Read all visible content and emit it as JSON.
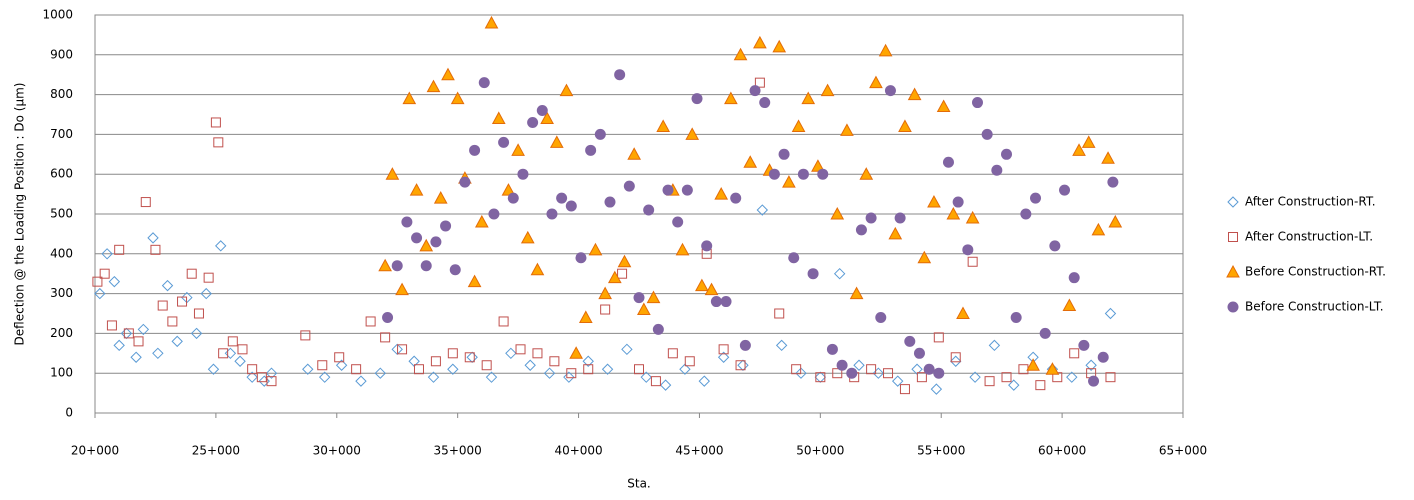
{
  "chart_data": {
    "type": "scatter",
    "y_label": "Deflection @ the Loading Position : Do (μm)",
    "x_label": "Sta.",
    "xlim": [
      20000,
      65000
    ],
    "xticks": [
      {
        "value": 20000,
        "label": "20+000"
      },
      {
        "value": 25000,
        "label": "25+000"
      },
      {
        "value": 30000,
        "label": "30+000"
      },
      {
        "value": 35000,
        "label": "35+000"
      },
      {
        "value": 40000,
        "label": "40+000"
      },
      {
        "value": 45000,
        "label": "45+000"
      },
      {
        "value": 50000,
        "label": "50+000"
      },
      {
        "value": 55000,
        "label": "55+000"
      },
      {
        "value": 60000,
        "label": "60+000"
      },
      {
        "value": 65000,
        "label": "65+000"
      }
    ],
    "ylim": [
      0,
      1000
    ],
    "yticks": [
      0,
      100,
      200,
      300,
      400,
      500,
      600,
      700,
      800,
      900,
      1000
    ],
    "grid": true,
    "legend": "right",
    "series": [
      {
        "name": "After Construction-RT.",
        "color": "#5b9bd5",
        "marker": "diamond",
        "x": [
          20200,
          20500,
          20800,
          21000,
          21300,
          21700,
          22000,
          22400,
          22600,
          23000,
          23400,
          23800,
          24200,
          24600,
          24900,
          25200,
          25600,
          26000,
          26500,
          27000,
          27300,
          28800,
          29500,
          30200,
          31000,
          31800,
          32500,
          33200,
          34000,
          34800,
          35600,
          36400,
          37200,
          38000,
          38800,
          39600,
          40400,
          41200,
          42000,
          42800,
          43600,
          44400,
          45200,
          46000,
          46800,
          47600,
          48400,
          49200,
          50000,
          50800,
          51600,
          52400,
          53200,
          54000,
          54800,
          55600,
          56400,
          57200,
          58000,
          58800,
          59600,
          60400,
          61200,
          62000
        ],
        "values": [
          300,
          400,
          330,
          170,
          200,
          140,
          210,
          440,
          150,
          320,
          180,
          290,
          200,
          300,
          110,
          420,
          150,
          130,
          90,
          80,
          100,
          110,
          90,
          120,
          80,
          100,
          160,
          130,
          90,
          110,
          140,
          90,
          150,
          120,
          100,
          90,
          130,
          110,
          160,
          90,
          70,
          110,
          80,
          140,
          120,
          510,
          170,
          100,
          90,
          350,
          120,
          100,
          80,
          110,
          60,
          130,
          90,
          170,
          70,
          140,
          110,
          90,
          120,
          250
        ]
      },
      {
        "name": "After Construction-LT.",
        "color": "#c0504d",
        "marker": "square",
        "x": [
          20100,
          20400,
          20700,
          21000,
          21400,
          21800,
          22100,
          22500,
          22800,
          23200,
          23600,
          24000,
          24300,
          24700,
          25000,
          25100,
          25300,
          25700,
          26100,
          26500,
          26900,
          27300,
          28700,
          29400,
          30100,
          30800,
          31400,
          32000,
          32700,
          33400,
          34100,
          34800,
          35500,
          36200,
          36900,
          37600,
          38300,
          39000,
          39700,
          40400,
          41100,
          41800,
          42500,
          43200,
          43900,
          44600,
          45300,
          46000,
          46700,
          47500,
          48300,
          49000,
          50000,
          50700,
          51400,
          52100,
          52800,
          53500,
          54200,
          54900,
          55600,
          56300,
          57000,
          57700,
          58400,
          59100,
          59800,
          60500,
          61200,
          62000
        ],
        "values": [
          330,
          350,
          220,
          410,
          200,
          180,
          530,
          410,
          270,
          230,
          280,
          350,
          250,
          340,
          730,
          680,
          150,
          180,
          160,
          110,
          90,
          80,
          195,
          120,
          140,
          110,
          230,
          190,
          160,
          110,
          130,
          150,
          140,
          120,
          230,
          160,
          150,
          130,
          100,
          110,
          260,
          350,
          110,
          80,
          150,
          130,
          400,
          160,
          120,
          830,
          250,
          110,
          90,
          100,
          90,
          110,
          100,
          60,
          90,
          190,
          140,
          380,
          80,
          90,
          110,
          70,
          90,
          150,
          100,
          90
        ]
      },
      {
        "name": "Before Construction-RT.",
        "color": "#ffa500",
        "marker": "triangle",
        "x": [
          32000,
          32300,
          32700,
          33000,
          33300,
          33700,
          34000,
          34300,
          34600,
          35000,
          35300,
          35700,
          36000,
          36400,
          36700,
          37100,
          37500,
          37900,
          38300,
          38700,
          39100,
          39500,
          39900,
          40300,
          40700,
          41100,
          41500,
          41900,
          42300,
          42700,
          43100,
          43500,
          43900,
          44300,
          44700,
          45100,
          45500,
          45900,
          46300,
          46700,
          47100,
          47500,
          47900,
          48300,
          48700,
          49100,
          49500,
          49900,
          50300,
          50700,
          51100,
          51500,
          51900,
          52300,
          52700,
          53100,
          53500,
          53900,
          54300,
          54700,
          55100,
          55500,
          55900,
          56300,
          58800,
          59600,
          60300,
          60700,
          61100,
          61500,
          61900,
          62200
        ],
        "values": [
          370,
          600,
          310,
          790,
          560,
          420,
          820,
          540,
          850,
          790,
          590,
          330,
          480,
          980,
          740,
          560,
          660,
          440,
          360,
          740,
          680,
          810,
          150,
          240,
          410,
          300,
          340,
          380,
          650,
          260,
          290,
          720,
          560,
          410,
          700,
          320,
          310,
          550,
          790,
          900,
          630,
          930,
          610,
          920,
          580,
          720,
          790,
          620,
          810,
          500,
          710,
          300,
          600,
          830,
          910,
          450,
          720,
          800,
          390,
          530,
          770,
          500,
          250,
          490,
          120,
          110,
          270,
          660,
          680,
          460,
          640,
          480
        ]
      },
      {
        "name": "Before Construction-LT.",
        "color": "#8064a2",
        "marker": "circle",
        "x": [
          32100,
          32500,
          32900,
          33300,
          33700,
          34100,
          34500,
          34900,
          35300,
          35700,
          36100,
          36500,
          36900,
          37300,
          37700,
          38100,
          38500,
          38900,
          39300,
          39700,
          40100,
          40500,
          40900,
          41300,
          41700,
          42100,
          42500,
          42900,
          43300,
          43700,
          44100,
          44500,
          44900,
          45300,
          45700,
          46100,
          46500,
          46900,
          47300,
          47700,
          48100,
          48500,
          48900,
          49300,
          49700,
          50100,
          50500,
          50900,
          51300,
          51700,
          52100,
          52500,
          52900,
          53300,
          53700,
          54100,
          54500,
          54900,
          55300,
          55700,
          56100,
          56500,
          56900,
          57300,
          57700,
          58100,
          58500,
          58900,
          59300,
          59700,
          60100,
          60500,
          60900,
          61300,
          61700,
          62100
        ],
        "values": [
          240,
          370,
          480,
          440,
          370,
          430,
          470,
          360,
          580,
          660,
          830,
          500,
          680,
          540,
          600,
          730,
          760,
          500,
          540,
          520,
          390,
          660,
          700,
          530,
          850,
          570,
          290,
          510,
          210,
          560,
          480,
          560,
          790,
          420,
          280,
          280,
          540,
          170,
          810,
          780,
          600,
          650,
          390,
          600,
          350,
          600,
          160,
          120,
          100,
          460,
          490,
          240,
          810,
          490,
          180,
          150,
          110,
          100,
          630,
          530,
          410,
          780,
          700,
          610,
          650,
          240,
          500,
          540,
          200,
          420,
          560,
          340,
          170,
          80,
          140,
          580
        ]
      }
    ]
  }
}
